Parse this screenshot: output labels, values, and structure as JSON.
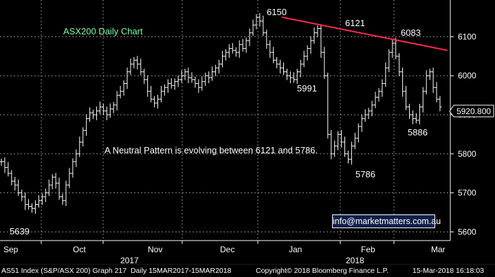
{
  "chart_data": {
    "type": "ohlc",
    "title": "ASX200 Daily Chart",
    "annotation": "A Neutral Pattern is evolving between 6121 and 5786.",
    "contact": "info@marketmatters.com.au",
    "current_value": "5920.800",
    "ylim": [
      5590,
      6180
    ],
    "y_ticks": [
      5600,
      5700,
      5800,
      5900,
      6000,
      6100
    ],
    "x_tick_labels": [
      "Sep",
      "Oct",
      "Nov",
      "Dec",
      "Jan",
      "Feb",
      "Mar"
    ],
    "year_labels": [
      "2017",
      "2018"
    ],
    "grid": true,
    "point_labels": [
      {
        "text": "6150",
        "value": 6150
      },
      {
        "text": "6121",
        "value": 6121
      },
      {
        "text": "6083",
        "value": 6083
      },
      {
        "text": "5991",
        "value": 5991
      },
      {
        "text": "5786",
        "value": 5786
      },
      {
        "text": "5886",
        "value": 5886
      },
      {
        "text": "5639",
        "value": 5639
      }
    ],
    "trendline": {
      "from": 6150,
      "to": 6065
    },
    "series": [
      {
        "values": [
          5780,
          5765,
          5750,
          5730,
          5720,
          5700,
          5690,
          5670,
          5665,
          5660,
          5670,
          5680,
          5690,
          5700,
          5720,
          5740,
          5725,
          5690,
          5680,
          5720,
          5750,
          5780,
          5800,
          5830,
          5860,
          5890,
          5905,
          5900,
          5910,
          5920,
          5910,
          5900,
          5915,
          5925,
          5950,
          5960,
          5980,
          6010,
          6030,
          6040,
          6030,
          6010,
          5990,
          5960,
          5940,
          5930,
          5940,
          5960,
          5970,
          5980,
          5975,
          5985,
          5990,
          6000,
          6010,
          5995,
          5990,
          5980,
          5970,
          5985,
          6000,
          5995,
          6010,
          6020,
          6030,
          6050,
          6060,
          6070,
          6065,
          6060,
          6080,
          6070,
          6090,
          6110,
          6130,
          6150,
          6140,
          6110,
          6080,
          6060,
          6040,
          6030,
          6020,
          6010,
          6000,
          5995,
          5990,
          6010,
          6030,
          6050,
          6070,
          6090,
          6110,
          6121,
          6060,
          6000,
          5850,
          5800,
          5820,
          5850,
          5830,
          5800,
          5786,
          5820,
          5840,
          5870,
          5890,
          5900,
          5910,
          5925,
          5945,
          5960,
          5980,
          6020,
          6060,
          6083,
          6050,
          6010,
          5960,
          5920,
          5900,
          5890,
          5886,
          5920,
          5960,
          6000,
          6010,
          5970,
          5940,
          5920
        ]
      }
    ]
  }
}
